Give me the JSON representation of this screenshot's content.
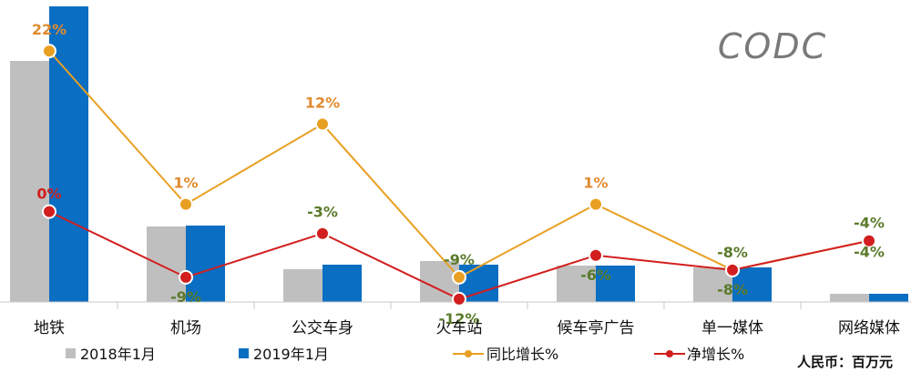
{
  "logo_text": "CODC",
  "unit_label": "人民币：百万元",
  "colors": {
    "bar_2018": "#BFBFBF",
    "bar_2019": "#0A6EC2",
    "line_yoy": "#E8A023",
    "line_net": "#D21E1E",
    "label_orange": "#E08A2E",
    "label_red": "#D21E1E",
    "label_green": "#5A7A2A",
    "logo": "#7A7A7A"
  },
  "chart_data": {
    "type": "bar",
    "categories": [
      "地铁",
      "机场",
      "公交车身",
      "火车站",
      "候车亭广告",
      "单一媒体",
      "网络媒体"
    ],
    "series": [
      {
        "name": "2018年1月",
        "type": "bar",
        "values": [
          265,
          83,
          36,
          45,
          40,
          38,
          9
        ]
      },
      {
        "name": "2019年1月",
        "type": "bar",
        "values": [
          325,
          84,
          41,
          41,
          40,
          38,
          9
        ]
      },
      {
        "name": "同比增长%",
        "type": "line",
        "values": [
          22,
          1,
          12,
          -9,
          1,
          -8,
          -4
        ],
        "point_labels": [
          "22%",
          "1%",
          "12%",
          "-9%",
          "1%",
          "-8%",
          "-4%"
        ]
      },
      {
        "name": "净增长%",
        "type": "line",
        "values": [
          0,
          -9,
          -3,
          -12,
          -6,
          -8,
          -4
        ],
        "point_labels": [
          "0%",
          "-9%",
          "-3%",
          "-12%",
          "-6%",
          "-8%",
          "-4%"
        ]
      }
    ],
    "legend": [
      "2018年1月",
      "2019年1月",
      "同比增长%",
      "净增长%"
    ],
    "legend_position": "bottom",
    "bar_ylim": [
      0,
      325
    ],
    "line_ylim": [
      -15,
      27
    ],
    "grid": false,
    "xlabel": "",
    "ylabel": ""
  }
}
